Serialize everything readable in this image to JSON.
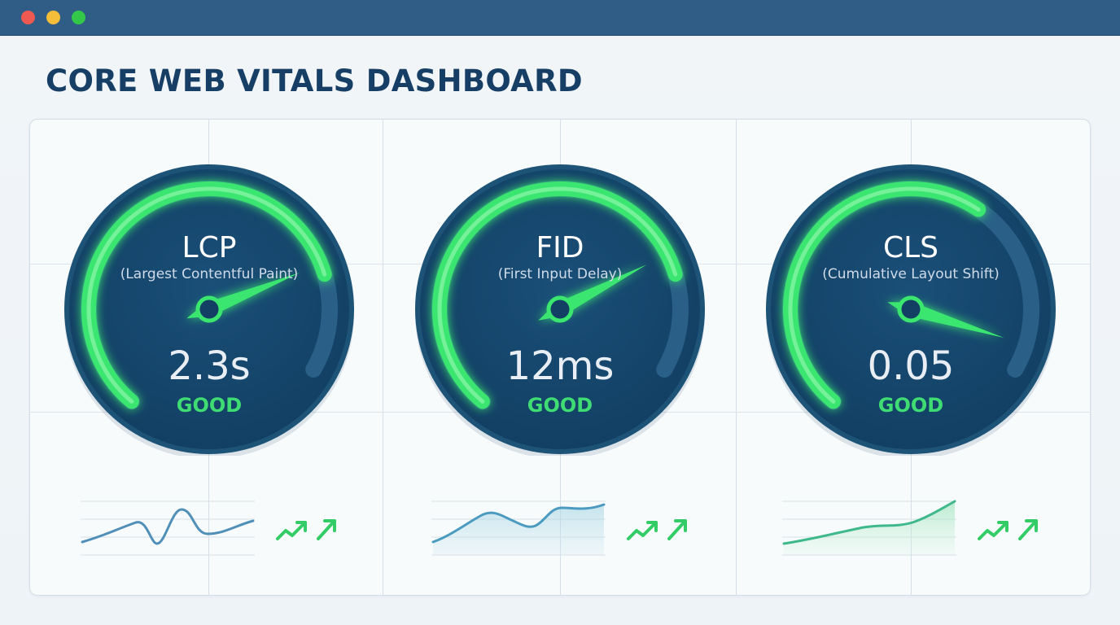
{
  "window": {
    "controls": [
      "close",
      "minimize",
      "maximize"
    ]
  },
  "page": {
    "title": "CORE WEB VITALS DASHBOARD"
  },
  "colors": {
    "titlebar": "#2f5d85",
    "title_text": "#173f66",
    "gauge_face": "#123f63",
    "gauge_arc_good": "#3be66f",
    "status_good": "#3fdc74",
    "sparkline_stroke": "#4a9bbf"
  },
  "metrics": [
    {
      "abbr": "LCP",
      "name": "(Largest Contentful Paint)",
      "value": "2.3s",
      "status": "GOOD",
      "gauge_fill_fraction": 0.82,
      "needle_fraction": 0.8,
      "trend_icon": "trending-up-icon"
    },
    {
      "abbr": "FID",
      "name": "(First Input Delay)",
      "value": "12ms",
      "status": "GOOD",
      "gauge_fill_fraction": 0.82,
      "needle_fraction": 0.78,
      "trend_icon": "trending-up-icon"
    },
    {
      "abbr": "CLS",
      "name": "(Cumulative Layout Shift)",
      "value": "0.05",
      "status": "GOOD",
      "gauge_fill_fraction": 0.67,
      "needle_fraction": 0.95,
      "trend_icon": "trending-up-icon"
    }
  ]
}
